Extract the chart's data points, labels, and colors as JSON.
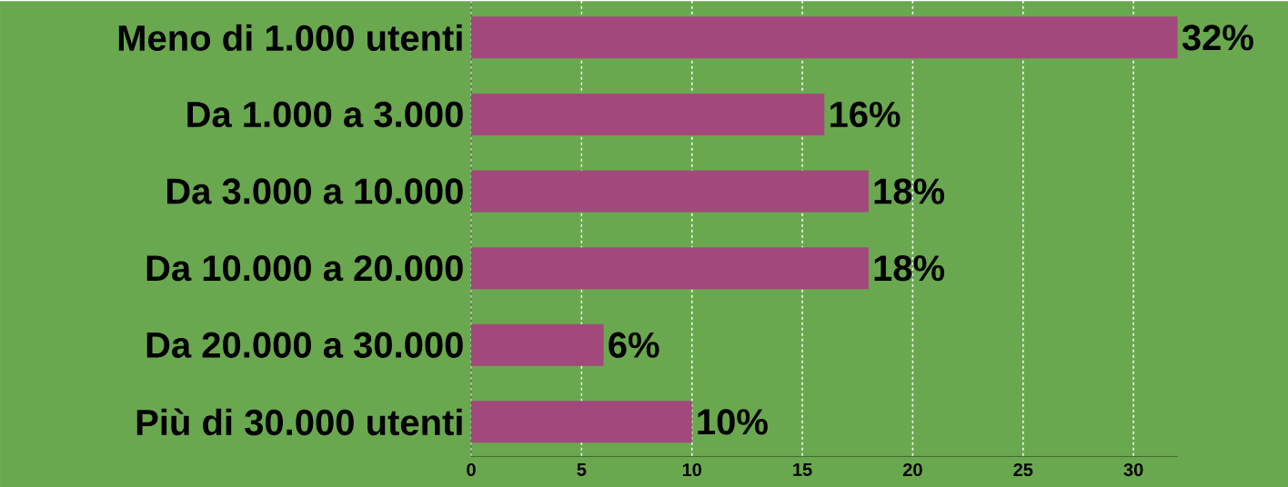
{
  "chart_data": {
    "type": "bar",
    "orientation": "horizontal",
    "categories": [
      "Meno di 1.000 utenti",
      "Da 1.000 a 3.000",
      "Da 3.000 a 10.000",
      "Da 10.000 a 20.000",
      "Da 20.000 a 30.000",
      "Più di 30.000 utenti"
    ],
    "values": [
      32,
      16,
      18,
      18,
      6,
      10
    ],
    "value_labels": [
      "32%",
      "16%",
      "18%",
      "18%",
      "6%",
      "10%"
    ],
    "color": "#a0497a",
    "xlim": [
      0,
      32
    ],
    "xticks": [
      0,
      5,
      10,
      15,
      20,
      25,
      30
    ],
    "grid": "x"
  }
}
